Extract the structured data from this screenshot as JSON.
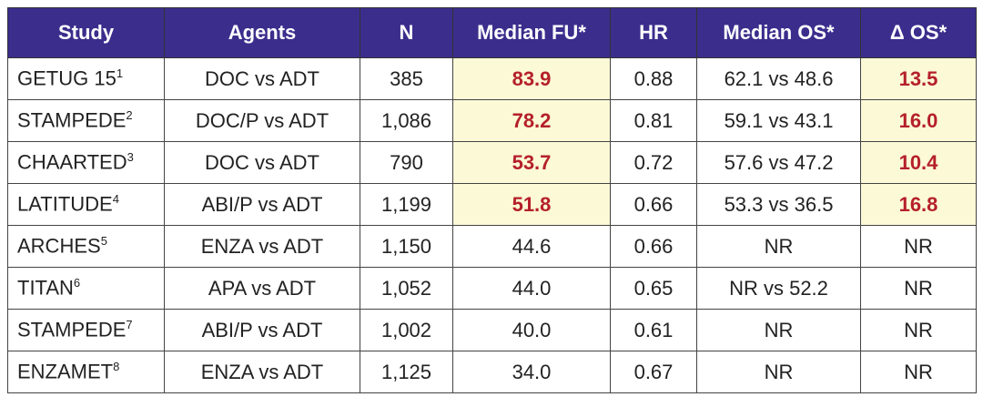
{
  "table": {
    "header": [
      "Study",
      "Agents",
      "N",
      "Median FU*",
      "HR",
      "Median OS*",
      "Δ OS*"
    ],
    "highlight_color": "#fcf9d6",
    "highlight_text_color": "#b5202a",
    "rows": [
      {
        "study": "GETUG 15",
        "ref": "1",
        "agents": "DOC vs ADT",
        "n": "385",
        "median_fu": "83.9",
        "hr": "0.88",
        "median_os": "62.1 vs 48.6",
        "delta_os": "13.5",
        "highlight": true
      },
      {
        "study": "STAMPEDE",
        "ref": "2",
        "agents": "DOC/P vs ADT",
        "n": "1,086",
        "median_fu": "78.2",
        "hr": "0.81",
        "median_os": "59.1 vs 43.1",
        "delta_os": "16.0",
        "highlight": true
      },
      {
        "study": "CHAARTED",
        "ref": "3",
        "agents": "DOC vs ADT",
        "n": "790",
        "median_fu": "53.7",
        "hr": "0.72",
        "median_os": "57.6 vs 47.2",
        "delta_os": "10.4",
        "highlight": true
      },
      {
        "study": "LATITUDE",
        "ref": "4",
        "agents": "ABI/P vs ADT",
        "n": "1,199",
        "median_fu": "51.8",
        "hr": "0.66",
        "median_os": "53.3 vs 36.5",
        "delta_os": "16.8",
        "highlight": true
      },
      {
        "study": "ARCHES",
        "ref": "5",
        "agents": "ENZA vs ADT",
        "n": "1,150",
        "median_fu": "44.6",
        "hr": "0.66",
        "median_os": "NR",
        "delta_os": "NR",
        "highlight": false
      },
      {
        "study": "TITAN",
        "ref": "6",
        "agents": "APA vs ADT",
        "n": "1,052",
        "median_fu": "44.0",
        "hr": "0.65",
        "median_os": "NR vs 52.2",
        "delta_os": "NR",
        "highlight": false
      },
      {
        "study": "STAMPEDE",
        "ref": "7",
        "agents": "ABI/P vs ADT",
        "n": "1,002",
        "median_fu": "40.0",
        "hr": "0.61",
        "median_os": "NR",
        "delta_os": "NR",
        "highlight": false
      },
      {
        "study": "ENZAMET",
        "ref": "8",
        "agents": "ENZA vs ADT",
        "n": "1,125",
        "median_fu": "34.0",
        "hr": "0.67",
        "median_os": "NR",
        "delta_os": "NR",
        "highlight": false
      }
    ]
  }
}
